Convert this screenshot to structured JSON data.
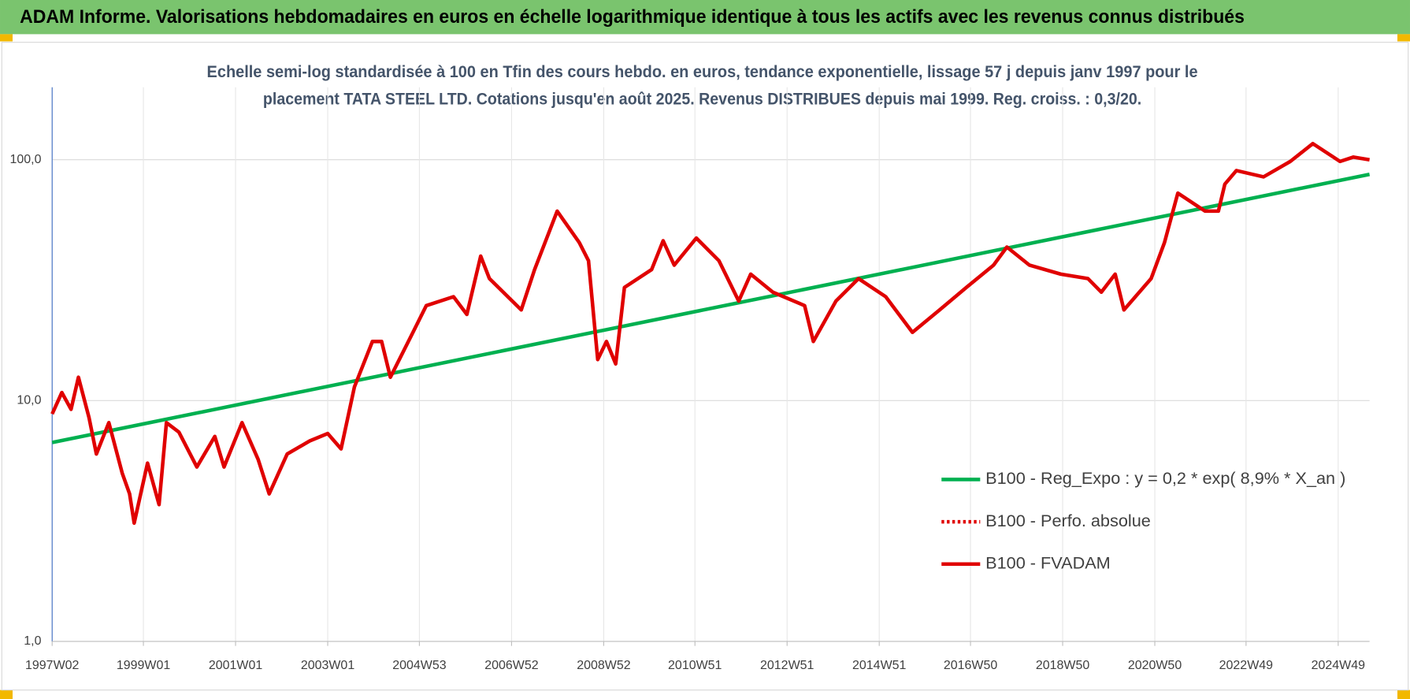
{
  "chart_data": {
    "type": "line",
    "title": "ADAM Informe. Valorisations hebdomadaires en euros en échelle logarithmique identique à tous les actifs avec les revenus connus distribués",
    "subtitle": [
      "Echelle semi-log standardisée à 100 en Tfin des cours hebdo. en euros, tendance exponentielle, lissage 57 j depuis janv 1997 pour le",
      "placement TATA STEEL LTD. Cotations jusqu'en août 2025.  Revenus DISTRIBUES depuis mai 1999. Reg. croiss. : 0,3/20."
    ],
    "log_scale": true,
    "grid": true,
    "legend": "center-right",
    "xlim": [
      1997.02,
      2025.61
    ],
    "ylim": [
      1,
      200
    ],
    "yticks": [
      {
        "value": 1,
        "label": "1,0"
      },
      {
        "value": 10,
        "label": "10,0"
      },
      {
        "value": 100,
        "label": "100,0"
      }
    ],
    "xticks": [
      {
        "value": 1997.02,
        "label": "1997W02"
      },
      {
        "value": 1999.0,
        "label": "1999W01"
      },
      {
        "value": 2001.0,
        "label": "2001W01"
      },
      {
        "value": 2003.0,
        "label": "2003W01"
      },
      {
        "value": 2004.99,
        "label": "2004W53"
      },
      {
        "value": 2006.99,
        "label": "2006W52"
      },
      {
        "value": 2008.99,
        "label": "2008W52"
      },
      {
        "value": 2010.97,
        "label": "2010W51"
      },
      {
        "value": 2012.97,
        "label": "2012W51"
      },
      {
        "value": 2014.97,
        "label": "2014W51"
      },
      {
        "value": 2016.95,
        "label": "2016W50"
      },
      {
        "value": 2018.95,
        "label": "2018W50"
      },
      {
        "value": 2020.95,
        "label": "2020W50"
      },
      {
        "value": 2022.93,
        "label": "2022W49"
      },
      {
        "value": 2024.93,
        "label": "2024W49"
      }
    ],
    "series": [
      {
        "name": "B100 - Reg_Expo : y = 0,2 * exp( 8,9% *  X_an )",
        "color": "#00b050",
        "dash": "solid",
        "x": [
          1997.02,
          2025.61
        ],
        "values": [
          6.7,
          87
        ]
      },
      {
        "name": "B100 - Perfo. absolue",
        "color": "#e00000",
        "dash": "dotted",
        "x": [],
        "values": []
      },
      {
        "name": "B100 - FVADAM",
        "color": "#e00000",
        "dash": "solid",
        "x": [
          1997.02,
          1997.23,
          1997.43,
          1997.59,
          1997.82,
          1997.98,
          1998.25,
          1998.54,
          1998.7,
          1998.8,
          1999.09,
          1999.34,
          1999.5,
          1999.77,
          2000.16,
          2000.55,
          2000.75,
          2001.14,
          2001.49,
          2001.73,
          2002.12,
          2002.61,
          2003.0,
          2003.29,
          2003.58,
          2003.97,
          2004.17,
          2004.36,
          2004.85,
          2005.14,
          2005.73,
          2006.02,
          2006.32,
          2006.51,
          2007.2,
          2007.49,
          2007.98,
          2008.46,
          2008.66,
          2008.86,
          2009.05,
          2009.25,
          2009.44,
          2010.03,
          2010.28,
          2010.52,
          2011.0,
          2011.49,
          2011.92,
          2012.18,
          2012.66,
          2013.35,
          2013.54,
          2014.03,
          2014.52,
          2015.11,
          2015.69,
          2016.28,
          2016.86,
          2017.45,
          2017.74,
          2018.23,
          2018.91,
          2019.5,
          2019.79,
          2020.09,
          2020.28,
          2020.87,
          2021.16,
          2021.45,
          2022.04,
          2022.33,
          2022.47,
          2022.72,
          2023.31,
          2023.89,
          2024.38,
          2024.97,
          2025.26,
          2025.61
        ],
        "values": [
          8.8,
          10.8,
          9.2,
          12.5,
          8.5,
          6.0,
          8.1,
          5.0,
          4.1,
          3.1,
          5.5,
          3.7,
          8.1,
          7.4,
          5.3,
          7.1,
          5.3,
          8.1,
          5.7,
          4.1,
          6.0,
          6.8,
          7.3,
          6.3,
          11.4,
          17.6,
          17.6,
          12.5,
          19.2,
          24.8,
          27.0,
          22.8,
          39.8,
          32.1,
          23.8,
          35.0,
          61.2,
          45.3,
          38.1,
          14.8,
          17.6,
          14.2,
          29.5,
          35.0,
          46.1,
          36.5,
          47.3,
          38.1,
          25.9,
          33.5,
          28.2,
          24.8,
          17.6,
          25.9,
          32.1,
          27.0,
          19.2,
          23.8,
          29.5,
          36.5,
          43.4,
          36.5,
          33.5,
          32.1,
          28.2,
          33.5,
          23.8,
          32.1,
          45.3,
          72.7,
          61.2,
          61.2,
          79.2,
          90.2,
          84.9,
          98.4,
          116.7,
          98.4,
          102.6,
          100
        ]
      }
    ]
  }
}
